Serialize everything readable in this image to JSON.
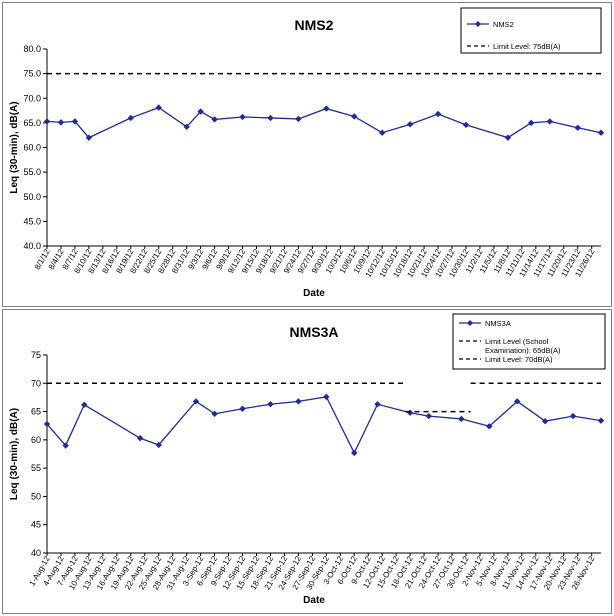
{
  "chart_data": [
    {
      "type": "line",
      "title": "NMS2",
      "xlabel": "Date",
      "ylabel": "Leq (30-min), dB(A)",
      "ylim": [
        40,
        80
      ],
      "yticks": [
        "40.0",
        "45.0",
        "50.0",
        "55.0",
        "60.0",
        "65.0",
        "70.0",
        "75.0",
        "80.0"
      ],
      "grid": false,
      "legend_position": "top-right",
      "categories": [
        "8/1/12",
        "8/4/12",
        "8/7/12",
        "8/10/12",
        "8/13/12",
        "8/16/12",
        "8/19/12",
        "8/22/12",
        "8/25/12",
        "8/28/12",
        "8/31/12",
        "9/3/12",
        "9/6/12",
        "9/9/12",
        "9/12/12",
        "9/15/12",
        "9/18/12",
        "9/21/12",
        "9/24/12",
        "9/27/12",
        "9/30/12",
        "10/3/12",
        "10/6/12",
        "10/9/12",
        "10/12/12",
        "10/15/12",
        "10/18/12",
        "10/21/12",
        "10/24/12",
        "10/27/12",
        "10/30/12",
        "11/2/12",
        "11/5/12",
        "11/8/12",
        "11/11/12",
        "11/14/12",
        "11/17/12",
        "11/20/12",
        "11/23/12",
        "11/26/12"
      ],
      "series": [
        {
          "name": "NMS2",
          "color": "#1f2a9c",
          "marker": "diamond",
          "x": [
            0,
            3,
            6,
            9,
            18,
            24,
            30,
            33,
            36,
            42,
            48,
            54,
            60,
            66,
            72,
            78,
            84,
            90,
            99,
            104,
            108,
            114,
            119
          ],
          "values": [
            65.3,
            65.1,
            65.3,
            62.0,
            66.0,
            68.1,
            64.2,
            67.3,
            65.7,
            66.2,
            66.0,
            65.8,
            67.9,
            66.3,
            63.0,
            64.7,
            66.8,
            64.6,
            62.0,
            65.0,
            65.3,
            64.0,
            63.0
          ]
        },
        {
          "name": "Limit Level: 75dB(A)",
          "color": "#000000",
          "dashed": true,
          "x": [
            0,
            119
          ],
          "values": [
            75,
            75
          ]
        }
      ]
    },
    {
      "type": "line",
      "title": "NMS3A",
      "xlabel": "Date",
      "ylabel": "Leq (30-min), dB(A)",
      "ylim": [
        40,
        75
      ],
      "yticks": [
        "40",
        "45",
        "50",
        "55",
        "60",
        "65",
        "70",
        "75"
      ],
      "grid": false,
      "legend_position": "top-right",
      "categories": [
        "1-Aug-12",
        "4-Aug-12",
        "7-Aug-12",
        "10-Aug-12",
        "13-Aug-12",
        "16-Aug-12",
        "19-Aug-12",
        "22-Aug-12",
        "25-Aug-12",
        "28-Aug-12",
        "31-Aug-12",
        "3-Sep-12",
        "6-Sep-12",
        "9-Sep-12",
        "12-Sep-12",
        "15-Sep-12",
        "18-Sep-12",
        "21-Sep-12",
        "24-Sep-12",
        "27-Sep-12",
        "30-Sep-12",
        "3-Oct-12",
        "6-Oct-12",
        "9-Oct-12",
        "12-Oct-12",
        "15-Oct-12",
        "18-Oct-12",
        "21-Oct-12",
        "24-Oct-12",
        "27-Oct-12",
        "30-Oct-12",
        "2-Nov-12",
        "5-Nov-12",
        "8-Nov-12",
        "11-Nov-12",
        "14-Nov-12",
        "17-Nov-12",
        "20-Nov-12",
        "23-Nov-12",
        "26-Nov-12"
      ],
      "series": [
        {
          "name": "NMS3A",
          "color": "#1f2a9c",
          "marker": "diamond",
          "x": [
            0,
            4,
            8,
            20,
            24,
            32,
            36,
            42,
            48,
            54,
            60,
            66,
            71,
            78,
            82,
            89,
            95,
            101,
            107,
            113,
            119
          ],
          "values": [
            62.8,
            59.0,
            66.2,
            60.3,
            59.1,
            66.8,
            64.6,
            65.5,
            66.3,
            66.8,
            67.6,
            57.7,
            66.3,
            64.8,
            64.2,
            63.7,
            62.4,
            66.8,
            63.3,
            64.2,
            63.4
          ]
        },
        {
          "name": "Limit Level (School Examination): 65dB(A)",
          "color": "#000000",
          "dashed": true,
          "x": [
            77,
            91
          ],
          "values": [
            65,
            65
          ]
        },
        {
          "name": "Limit Level: 70dB(A)",
          "color": "#000000",
          "dashed": true,
          "segments": [
            [
              [
                0,
                70
              ],
              [
                77,
                70
              ]
            ],
            [
              [
                91,
                70
              ],
              [
                119,
                70
              ]
            ]
          ]
        }
      ]
    }
  ]
}
